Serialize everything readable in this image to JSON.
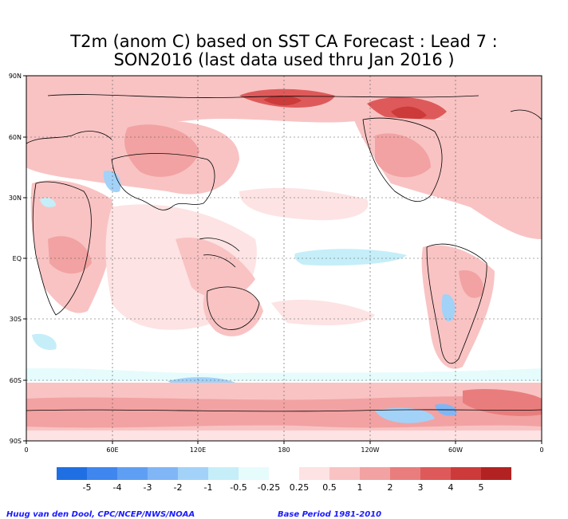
{
  "title": {
    "line1": "T2m (anom C) based on SST CA Forecast : Lead 7 :",
    "line2": "SON2016 (last data used thru Jan 2016 )"
  },
  "lat_labels": [
    "90N",
    "60N",
    "30N",
    "EQ",
    "30S",
    "60S",
    "90S"
  ],
  "lon_labels": [
    "0",
    "60E",
    "120E",
    "180",
    "120W",
    "60W",
    "0"
  ],
  "colorbar": {
    "labels": [
      "-5",
      "-4",
      "-3",
      "-2",
      "-1",
      "-0.5",
      "-0.25",
      "0.25",
      "0.5",
      "1",
      "2",
      "3",
      "4",
      "5"
    ],
    "colors": [
      "#1f6fe3",
      "#3f86ee",
      "#5f9ff3",
      "#80b6f6",
      "#a2d2f8",
      "#c5eef9",
      "#e6fbfc",
      "#ffffff",
      "#fde3e3",
      "#f9c3c3",
      "#f2a2a2",
      "#e97d7d",
      "#de5a5a",
      "#cc3a3a",
      "#b32222"
    ]
  },
  "credits": {
    "left": "Huug van den Dool, CPC/NCEP/NWS/NOAA",
    "right": "Base Period 1981-2010"
  },
  "map": {
    "projection": "cylindrical-equidistant",
    "ocean_color": "#ffffff",
    "warm_colors": [
      "#fde3e3",
      "#f9c3c3",
      "#f2a2a2",
      "#e97d7d",
      "#de5a5a"
    ],
    "cool_colors": [
      "#e6fbfc",
      "#c5eef9",
      "#a2d2f8",
      "#80b6f6"
    ]
  }
}
